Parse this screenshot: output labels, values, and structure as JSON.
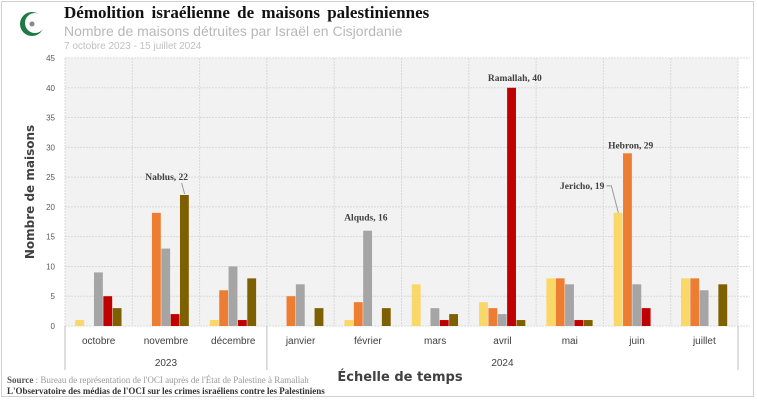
{
  "header": {
    "title": "Démolition israélienne  de maisons palestiniennes",
    "subtitle": "Nombre de maisons détruites par Israël en Cisjordanie",
    "dates": "7 octobre  2023 - 15 juillet 2024"
  },
  "footer": {
    "source_label": "Source",
    "source_text": " : Bureau de représentation de l'OCI auprès de l'État de Palestine à Ramallah",
    "observatory": "L'Observatoire des médias de l'OCI sur les crimes israéliens contre les Palestiniens"
  },
  "chart_data": {
    "type": "bar",
    "xlabel": "Échelle de temps",
    "ylabel": "Nombre de maisons",
    "ylim": [
      0,
      45
    ],
    "yticks": [
      0,
      5,
      10,
      15,
      20,
      25,
      30,
      35,
      40,
      45
    ],
    "grid": true,
    "categories": [
      "octobre",
      "novembre",
      "décembre",
      "janvier",
      "février",
      "mars",
      "avril",
      "mai",
      "juin",
      "juillet"
    ],
    "year_groups": [
      {
        "label": "2023",
        "count": 3
      },
      {
        "label": "2024",
        "count": 7
      }
    ],
    "series": [
      {
        "color": "#f9d769",
        "values": [
          1,
          0,
          1,
          0,
          1,
          7,
          4,
          8,
          19,
          8
        ]
      },
      {
        "color": "#ed7d31",
        "values": [
          0,
          19,
          6,
          5,
          4,
          0,
          3,
          8,
          29,
          8
        ]
      },
      {
        "color": "#a5a5a5",
        "values": [
          9,
          13,
          10,
          7,
          16,
          3,
          2,
          7,
          7,
          6
        ]
      },
      {
        "color": "#c00000",
        "values": [
          5,
          2,
          1,
          0,
          0,
          1,
          40,
          1,
          3,
          0
        ]
      },
      {
        "color": "#7f6000",
        "values": [
          3,
          22,
          8,
          3,
          3,
          2,
          1,
          1,
          0,
          7
        ]
      }
    ],
    "annotations": [
      {
        "text": "Nablus, 22",
        "category": "novembre",
        "series": 4
      },
      {
        "text": "Alquds, 16",
        "category": "février",
        "series": 2
      },
      {
        "text": "Ramallah,  40",
        "category": "avril",
        "series": 3
      },
      {
        "text": "Hebron, 29",
        "category": "juin",
        "series": 1
      },
      {
        "text": "Jericho, 19",
        "category": "juin",
        "series": 0
      }
    ]
  }
}
